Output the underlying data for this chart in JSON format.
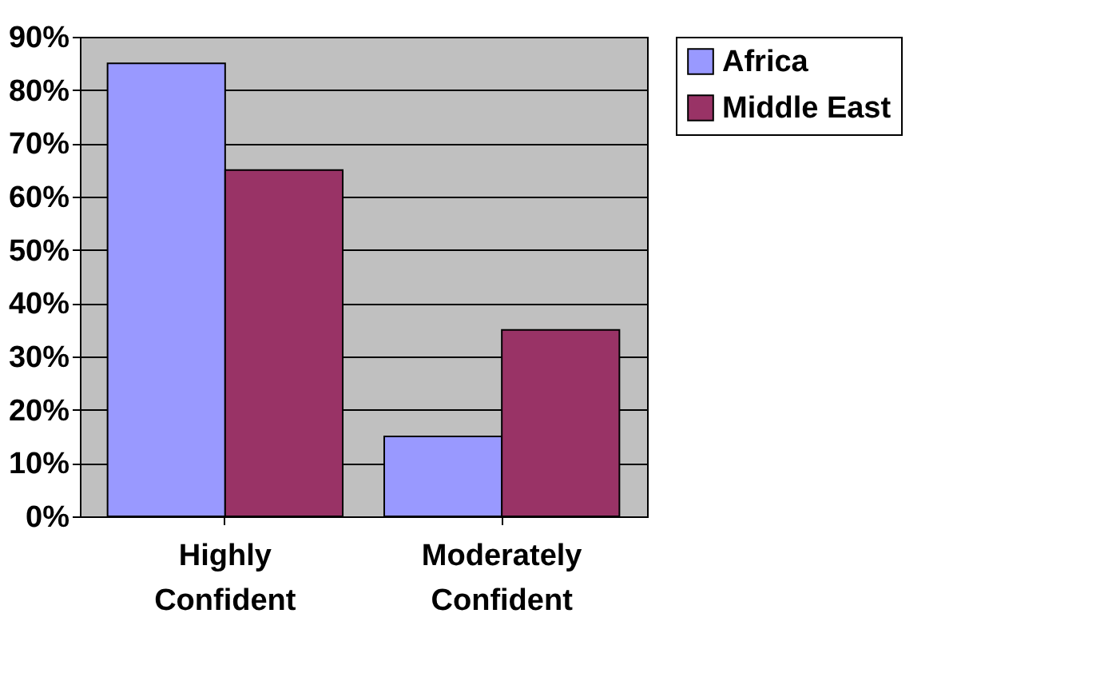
{
  "chart_data": {
    "type": "bar",
    "categories": [
      "Highly Confident",
      "Moderately Confident"
    ],
    "series": [
      {
        "name": "Africa",
        "color": "#9999ff",
        "values": [
          85,
          15
        ]
      },
      {
        "name": "Middle East",
        "color": "#993366",
        "values": [
          65,
          35
        ]
      }
    ],
    "ylim": [
      0,
      90
    ],
    "yticks": [
      {
        "value": 0,
        "label": "0%"
      },
      {
        "value": 10,
        "label": "10%"
      },
      {
        "value": 20,
        "label": "20%"
      },
      {
        "value": 30,
        "label": "30%"
      },
      {
        "value": 40,
        "label": "40%"
      },
      {
        "value": 50,
        "label": "50%"
      },
      {
        "value": 60,
        "label": "60%"
      },
      {
        "value": 70,
        "label": "70%"
      },
      {
        "value": 80,
        "label": "80%"
      },
      {
        "value": 90,
        "label": "90%"
      }
    ],
    "grid": "y",
    "legend": "right"
  }
}
